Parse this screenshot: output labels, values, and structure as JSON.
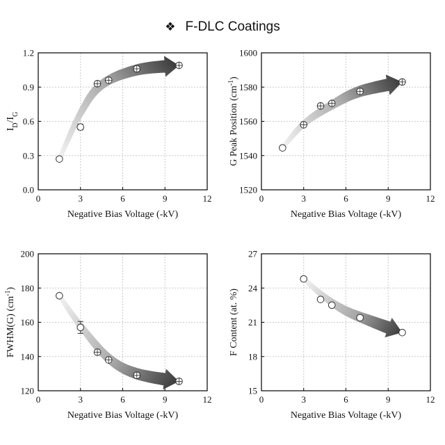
{
  "title": {
    "glyph": "❖",
    "text": "F-DLC Coatings"
  },
  "colors": {
    "axis": "#000000",
    "grid": "#c8c8c8",
    "marker_edge": "#333333",
    "marker_fill": "#ffffff",
    "arrow_start": "#f2f2f2",
    "arrow_end": "#3a3a3a"
  },
  "chart_data": [
    {
      "type": "scatter",
      "title": "",
      "xlabel": "Negative Bias Voltage (-kV)",
      "ylabel": {
        "main": "I",
        "sub1": "D",
        "mid": "/I",
        "sub2": "G"
      },
      "xlim": [
        0,
        12
      ],
      "ylim": [
        0.0,
        1.2
      ],
      "xticks": [
        "0",
        "3",
        "6",
        "9",
        "12"
      ],
      "yticks": [
        "0.0",
        "0.3",
        "0.6",
        "0.9",
        "1.2"
      ],
      "x": [
        1.5,
        3,
        4.2,
        5,
        7,
        10
      ],
      "y": [
        0.27,
        0.55,
        0.93,
        0.96,
        1.06,
        1.09
      ],
      "yerr": [
        0.005,
        0.025,
        0.01,
        0.012,
        0.02,
        0.012
      ],
      "xerr_marker": [
        false,
        false,
        true,
        true,
        true,
        true
      ],
      "trend_arrow": {
        "points": [
          [
            1.5,
            0.27
          ],
          [
            3,
            0.67
          ],
          [
            4.5,
            0.92
          ],
          [
            7,
            1.05
          ],
          [
            10,
            1.09
          ]
        ]
      },
      "grid": true
    },
    {
      "type": "scatter",
      "title": "",
      "xlabel": "Negative Bias Voltage (-kV)",
      "ylabel": {
        "main": "G Peak Position (cm",
        "sup": "-1",
        "tail": ")"
      },
      "xlim": [
        0,
        12
      ],
      "ylim": [
        1520,
        1600
      ],
      "xticks": [
        "0",
        "3",
        "6",
        "9",
        "12"
      ],
      "yticks": [
        "1520",
        "1540",
        "1560",
        "1580",
        "1600"
      ],
      "x": [
        1.5,
        3,
        4.2,
        5,
        7,
        10
      ],
      "y": [
        1544.5,
        1558,
        1569,
        1570.5,
        1577.5,
        1583
      ],
      "yerr": [
        0.3,
        0.8,
        0.8,
        0.8,
        0.8,
        0.8
      ],
      "xerr_marker": [
        false,
        true,
        true,
        true,
        true,
        true
      ],
      "trend_arrow": {
        "points": [
          [
            1.5,
            1544.5
          ],
          [
            3,
            1558.5
          ],
          [
            5,
            1569.5
          ],
          [
            7,
            1577.5
          ],
          [
            10,
            1583
          ]
        ]
      },
      "grid": true
    },
    {
      "type": "scatter",
      "title": "",
      "xlabel": "Negative Bias Voltage (-kV)",
      "ylabel": {
        "main": "FWHM(G) (cm",
        "sup": "-1",
        "tail": ")"
      },
      "xlim": [
        0,
        12
      ],
      "ylim": [
        120,
        200
      ],
      "xticks": [
        "0",
        "3",
        "6",
        "9",
        "12"
      ],
      "yticks": [
        "120",
        "140",
        "160",
        "180",
        "200"
      ],
      "x": [
        1.5,
        3,
        4.2,
        5,
        7,
        10
      ],
      "y": [
        175.5,
        157,
        142.5,
        138,
        129,
        125.5
      ],
      "yerr": [
        0.5,
        3.5,
        0.8,
        0.8,
        1.5,
        0.8
      ],
      "xerr_marker": [
        false,
        false,
        true,
        true,
        true,
        true
      ],
      "trend_arrow": {
        "points": [
          [
            1.5,
            175.5
          ],
          [
            3,
            158
          ],
          [
            5,
            139
          ],
          [
            7,
            130
          ],
          [
            10,
            125.5
          ]
        ]
      },
      "grid": true
    },
    {
      "type": "scatter",
      "title": "",
      "xlabel": "Negative Bias Voltage (-kV)",
      "ylabel": {
        "main": "F Content (at. %)"
      },
      "xlim": [
        0,
        12
      ],
      "ylim": [
        15,
        27
      ],
      "xticks": [
        "0",
        "3",
        "6",
        "9",
        "12"
      ],
      "yticks": [
        "15",
        "18",
        "21",
        "24",
        "27"
      ],
      "x": [
        3,
        4.2,
        5,
        7,
        10
      ],
      "y": [
        24.8,
        23.0,
        22.5,
        21.4,
        20.1
      ],
      "yerr": [
        0,
        0,
        0,
        0,
        0
      ],
      "xerr_marker": [
        false,
        false,
        false,
        false,
        false
      ],
      "trend_arrow": {
        "points": [
          [
            3,
            24.8
          ],
          [
            4.5,
            23.2
          ],
          [
            6,
            22.0
          ],
          [
            8,
            21.0
          ],
          [
            10,
            20.1
          ]
        ]
      },
      "grid": true
    }
  ]
}
